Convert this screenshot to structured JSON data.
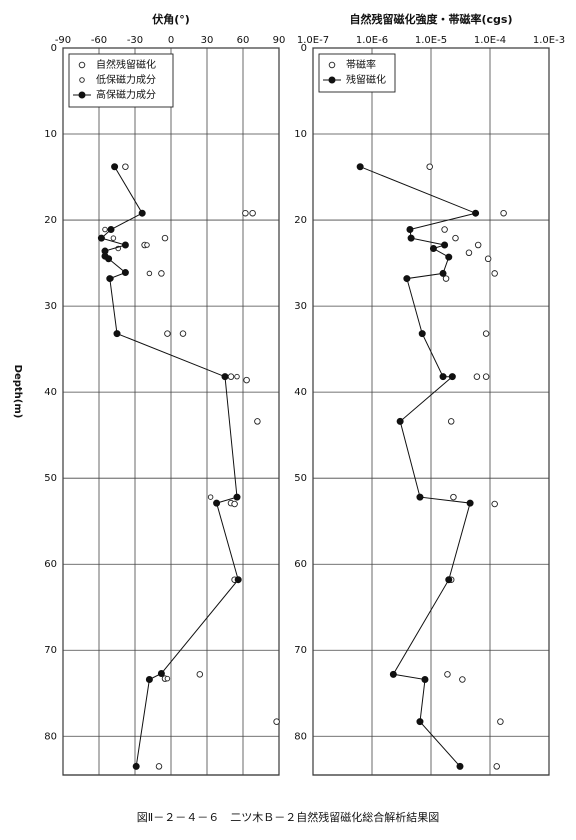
{
  "chart_data": [
    {
      "type": "scatter",
      "title": "伏角(°)",
      "ylabel": "Depth(m)",
      "xlim": [
        -90,
        90
      ],
      "xticks": [
        -90,
        -60,
        -30,
        0,
        30,
        60,
        90
      ],
      "ylim": [
        0,
        84.5
      ],
      "yticks": [
        0,
        10,
        20,
        30,
        40,
        50,
        60,
        70,
        80
      ],
      "grid": true,
      "legend": "upper left",
      "series": [
        {
          "name": "自然残留磁化",
          "color": "#222",
          "marker": "open",
          "line": false,
          "x": [
            -38,
            62,
            68,
            -5,
            -22,
            -8,
            -3,
            10,
            50,
            63,
            72,
            50,
            53,
            53,
            -5,
            24,
            88,
            -10
          ],
          "y": [
            13.8,
            19.2,
            19.2,
            22.1,
            22.9,
            26.2,
            33.2,
            33.2,
            38.2,
            38.6,
            43.4,
            52.9,
            53.0,
            61.8,
            73.3,
            72.8,
            78.3,
            83.5
          ]
        },
        {
          "name": "低保磁力成分",
          "color": "#222",
          "marker": "small-open",
          "line": false,
          "x": [
            -55,
            -48,
            -44,
            -20,
            -18,
            -50,
            55,
            33,
            -3
          ],
          "y": [
            21.1,
            22.1,
            23.3,
            22.9,
            26.2,
            26.8,
            38.2,
            52.2,
            73.3
          ]
        },
        {
          "name": "高保磁力成分",
          "color": "#111",
          "marker": "filled",
          "line": true,
          "x": [
            -47,
            -24,
            -50,
            -58,
            -38,
            -55,
            -55,
            -52,
            -38,
            -51,
            -45,
            45,
            55,
            38,
            56,
            -8,
            -18,
            -29
          ],
          "y": [
            13.8,
            19.2,
            21.1,
            22.1,
            22.9,
            23.6,
            24.2,
            24.5,
            26.1,
            26.8,
            33.2,
            38.2,
            52.2,
            52.9,
            61.8,
            72.7,
            73.4,
            83.5
          ]
        }
      ]
    },
    {
      "type": "scatter",
      "title": "自然残留磁化強度・帯磁率(cgs)",
      "xscale": "log",
      "xlim": [
        1e-07,
        0.001
      ],
      "xticks": [
        {
          "value": 1e-07,
          "label": "1.0E-7"
        },
        {
          "value": 1e-06,
          "label": "1.0E-6"
        },
        {
          "value": 1e-05,
          "label": "1.0E-5"
        },
        {
          "value": 0.0001,
          "label": "1.0E-4"
        },
        {
          "value": 0.001,
          "label": "1.0E-3"
        }
      ],
      "ylim": [
        0,
        84.5
      ],
      "yticks": [
        0,
        10,
        20,
        30,
        40,
        50,
        60,
        70,
        80
      ],
      "grid": true,
      "legend": "upper left",
      "series": [
        {
          "name": "帯磁率",
          "color": "#222",
          "marker": "open",
          "line": false,
          "x": [
            9.5e-06,
            0.00017,
            1.7e-05,
            2.6e-05,
            6.3e-05,
            4.4e-05,
            9.3e-05,
            0.00012,
            1.8e-05,
            8.6e-05,
            6e-05,
            8.6e-05,
            2.2e-05,
            2.4e-05,
            0.00012,
            2.2e-05,
            1.9e-05,
            3.4e-05,
            0.00015,
            0.00013
          ],
          "y": [
            13.8,
            19.2,
            21.1,
            22.1,
            22.9,
            23.8,
            24.5,
            26.2,
            26.8,
            33.2,
            38.2,
            38.2,
            43.4,
            52.2,
            53.0,
            61.8,
            72.8,
            73.4,
            78.3,
            83.5
          ]
        },
        {
          "name": "残留磁化",
          "color": "#111",
          "marker": "filled",
          "line": true,
          "x": [
            6.3e-07,
            5.7e-05,
            4.4e-06,
            4.6e-06,
            1.7e-05,
            1.1e-05,
            2e-05,
            1.6e-05,
            3.9e-06,
            7.1e-06,
            1.6e-05,
            2.3e-05,
            3e-06,
            6.5e-06,
            4.6e-05,
            2e-05,
            2.3e-06,
            7.9e-06,
            6.5e-06,
            3.1e-05
          ],
          "y": [
            13.8,
            19.2,
            21.1,
            22.1,
            22.9,
            23.3,
            24.3,
            26.2,
            26.8,
            33.2,
            38.2,
            38.2,
            43.4,
            52.2,
            52.9,
            61.8,
            72.8,
            73.4,
            78.3,
            83.5
          ]
        }
      ]
    }
  ],
  "caption": "図Ⅱ－２－４－６　二ツ木Ｂ－２自然残留磁化総合解析結果図"
}
